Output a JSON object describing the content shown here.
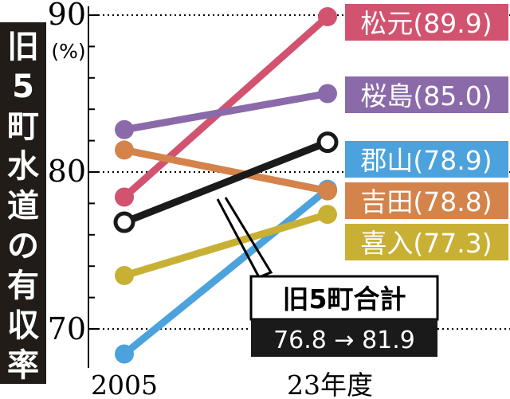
{
  "chart_data": {
    "type": "line",
    "title": "旧5町水道の有収率",
    "unit": "(%)",
    "categories": [
      "2005",
      "23年度"
    ],
    "ylim": [
      68,
      90
    ],
    "yticks": [
      70,
      80,
      90
    ],
    "grid": true,
    "series": [
      {
        "name": "松元",
        "values": [
          78.4,
          89.9
        ],
        "value_label": "(89.9)",
        "color": "#d1536f"
      },
      {
        "name": "桜島",
        "values": [
          82.7,
          85.0
        ],
        "value_label": "(85.0)",
        "color": "#8b6aaa"
      },
      {
        "name": "郡山",
        "values": [
          68.4,
          78.9
        ],
        "value_label": "(78.9)",
        "color": "#4ba2dc"
      },
      {
        "name": "吉田",
        "values": [
          81.4,
          78.8
        ],
        "value_label": "(78.8)",
        "color": "#d4834b"
      },
      {
        "name": "喜入",
        "values": [
          73.4,
          77.3
        ],
        "value_label": "(77.3)",
        "color": "#c8b034"
      },
      {
        "name": "旧5町合計",
        "values": [
          76.8,
          81.9
        ],
        "value_label": "76.8 → 81.9",
        "color": "#1a1a1a"
      }
    ],
    "callout": {
      "title": "旧5町合計",
      "text": "76.8 → 81.9"
    }
  }
}
